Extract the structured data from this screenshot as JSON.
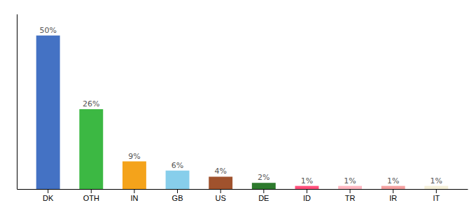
{
  "chart_data": {
    "type": "bar",
    "categories": [
      "DK",
      "OTH",
      "IN",
      "GB",
      "US",
      "DE",
      "ID",
      "TR",
      "IR",
      "IT"
    ],
    "values": [
      50,
      26,
      9,
      6,
      4,
      2,
      1,
      1,
      1,
      1
    ],
    "value_labels": [
      "50%",
      "26%",
      "9%",
      "6%",
      "4%",
      "2%",
      "1%",
      "1%",
      "1%",
      "1%"
    ],
    "data_labels": true,
    "colors": [
      "#4472C4",
      "#3CB843",
      "#F4A31B",
      "#87CEEB",
      "#A0522D",
      "#2D7A2D",
      "#FF4F7B",
      "#FFB6C1",
      "#F4A0A0",
      "#F5F0D8"
    ],
    "ylim": [
      0,
      57
    ],
    "tick_labels": "x",
    "grid": false
  }
}
